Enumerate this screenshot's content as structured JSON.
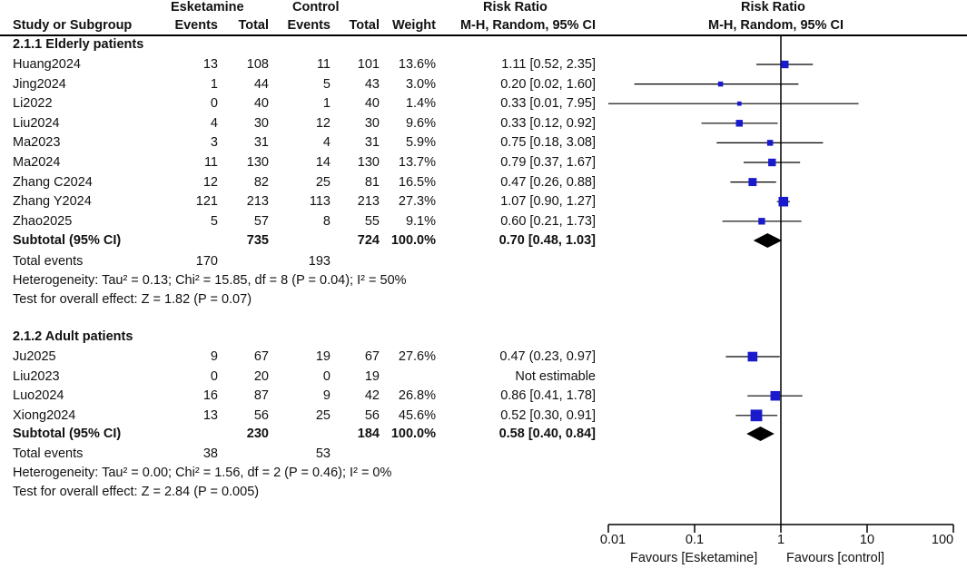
{
  "headers": {
    "group_esk": "Esketamine",
    "group_ctl": "Control",
    "col_study": "Study or Subgroup",
    "col_events": "Events",
    "col_total": "Total",
    "col_weight": "Weight",
    "col_rr_top": "Risk Ratio",
    "col_rr_method": "M-H, Random, 95% CI",
    "plot_title_top": "Risk Ratio",
    "plot_title_method": "M-H, Random, 95% CI"
  },
  "subgroups": [
    {
      "title": "2.1.1 Elderly patients",
      "studies": [
        {
          "study": "Huang2024",
          "e_events": "13",
          "e_total": "108",
          "c_events": "11",
          "c_total": "101",
          "weight": "13.6%",
          "ci_text": "1.11 [0.52, 2.35]"
        },
        {
          "study": "Jing2024",
          "e_events": "1",
          "e_total": "44",
          "c_events": "5",
          "c_total": "43",
          "weight": "3.0%",
          "ci_text": "0.20 [0.02, 1.60]"
        },
        {
          "study": "Li2022",
          "e_events": "0",
          "e_total": "40",
          "c_events": "1",
          "c_total": "40",
          "weight": "1.4%",
          "ci_text": "0.33 [0.01, 7.95]"
        },
        {
          "study": "Liu2024",
          "e_events": "4",
          "e_total": "30",
          "c_events": "12",
          "c_total": "30",
          "weight": "9.6%",
          "ci_text": "0.33 [0.12, 0.92]"
        },
        {
          "study": "Ma2023",
          "e_events": "3",
          "e_total": "31",
          "c_events": "4",
          "c_total": "31",
          "weight": "5.9%",
          "ci_text": "0.75 [0.18, 3.08]"
        },
        {
          "study": "Ma2024",
          "e_events": "11",
          "e_total": "130",
          "c_events": "14",
          "c_total": "130",
          "weight": "13.7%",
          "ci_text": "0.79 [0.37, 1.67]"
        },
        {
          "study": "Zhang C2024",
          "e_events": "12",
          "e_total": "82",
          "c_events": "25",
          "c_total": "81",
          "weight": "16.5%",
          "ci_text": "0.47 [0.26, 0.88]"
        },
        {
          "study": "Zhang Y2024",
          "e_events": "121",
          "e_total": "213",
          "c_events": "113",
          "c_total": "213",
          "weight": "27.3%",
          "ci_text": "1.07 [0.90, 1.27]"
        },
        {
          "study": "Zhao2025",
          "e_events": "5",
          "e_total": "57",
          "c_events": "8",
          "c_total": "55",
          "weight": "9.1%",
          "ci_text": "0.60 [0.21, 1.73]"
        }
      ],
      "subtotal": {
        "label": "Subtotal (95% CI)",
        "e_total": "735",
        "c_total": "724",
        "weight": "100.0%",
        "ci_text": "0.70 [0.48, 1.03]"
      },
      "total_events": {
        "label": "Total events",
        "e": "170",
        "c": "193"
      },
      "heterogeneity": "Heterogeneity: Tau² = 0.13; Chi² = 15.85, df = 8 (P = 0.04); I² = 50%",
      "overall": "Test for overall effect: Z = 1.82 (P = 0.07)"
    },
    {
      "title": "2.1.2 Adult patients",
      "studies": [
        {
          "study": "Ju2025",
          "e_events": "9",
          "e_total": "67",
          "c_events": "19",
          "c_total": "67",
          "weight": "27.6%",
          "ci_text": "0.47 (0.23, 0.97]"
        },
        {
          "study": "Liu2023",
          "e_events": "0",
          "e_total": "20",
          "c_events": "0",
          "c_total": "19",
          "weight": "",
          "ci_text": "Not estimable"
        },
        {
          "study": "Luo2024",
          "e_events": "16",
          "e_total": "87",
          "c_events": "9",
          "c_total": "42",
          "weight": "26.8%",
          "ci_text": "0.86 [0.41, 1.78]"
        },
        {
          "study": "Xiong2024",
          "e_events": "13",
          "e_total": "56",
          "c_events": "25",
          "c_total": "56",
          "weight": "45.6%",
          "ci_text": "0.52 [0.30, 0.91]"
        }
      ],
      "subtotal": {
        "label": "Subtotal (95% CI)",
        "e_total": "230",
        "c_total": "184",
        "weight": "100.0%",
        "ci_text": "0.58 [0.40, 0.84]"
      },
      "total_events": {
        "label": "Total events",
        "e": "38",
        "c": "53"
      },
      "heterogeneity": "Heterogeneity: Tau² = 0.00; Chi² = 1.56, df = 2 (P = 0.46); I² = 0%",
      "overall": "Test for overall effect: Z = 2.84 (P = 0.005)"
    }
  ],
  "axis": {
    "ticks": [
      "0.01",
      "0.1",
      "1",
      "10",
      "100"
    ],
    "favours_left": "Favours [Esketamine]",
    "favours_right": "Favours [control]"
  },
  "chart_data": {
    "type": "forest",
    "x_scale": "log",
    "xlim": [
      0.01,
      100
    ],
    "reference_line": 1,
    "ticks": [
      0.01,
      0.1,
      1,
      10,
      100
    ],
    "studies": [
      {
        "name": "Huang2024",
        "rr": 1.11,
        "lo": 0.52,
        "hi": 2.35,
        "weight": 13.6
      },
      {
        "name": "Jing2024",
        "rr": 0.2,
        "lo": 0.02,
        "hi": 1.6,
        "weight": 3.0
      },
      {
        "name": "Li2022",
        "rr": 0.33,
        "lo": 0.01,
        "hi": 7.95,
        "weight": 1.4
      },
      {
        "name": "Liu2024",
        "rr": 0.33,
        "lo": 0.12,
        "hi": 0.92,
        "weight": 9.6
      },
      {
        "name": "Ma2023",
        "rr": 0.75,
        "lo": 0.18,
        "hi": 3.08,
        "weight": 5.9
      },
      {
        "name": "Ma2024",
        "rr": 0.79,
        "lo": 0.37,
        "hi": 1.67,
        "weight": 13.7
      },
      {
        "name": "Zhang C2024",
        "rr": 0.47,
        "lo": 0.26,
        "hi": 0.88,
        "weight": 16.5
      },
      {
        "name": "Zhang Y2024",
        "rr": 1.07,
        "lo": 0.9,
        "hi": 1.27,
        "weight": 27.3
      },
      {
        "name": "Zhao2025",
        "rr": 0.6,
        "lo": 0.21,
        "hi": 1.73,
        "weight": 9.1
      },
      {
        "name": "Subtotal (95% CI)",
        "rr": 0.7,
        "lo": 0.48,
        "hi": 1.03,
        "diamond": true
      },
      {
        "name": "Ju2025",
        "rr": 0.47,
        "lo": 0.23,
        "hi": 0.97,
        "weight": 27.6
      },
      {
        "name": "Liu2023",
        "rr": null,
        "lo": null,
        "hi": null,
        "weight": null
      },
      {
        "name": "Luo2024",
        "rr": 0.86,
        "lo": 0.41,
        "hi": 1.78,
        "weight": 26.8
      },
      {
        "name": "Xiong2024",
        "rr": 0.52,
        "lo": 0.3,
        "hi": 0.91,
        "weight": 45.6
      },
      {
        "name": "Subtotal (95% CI)",
        "rr": 0.58,
        "lo": 0.4,
        "hi": 0.84,
        "diamond": true
      }
    ],
    "colors": {
      "marker": "#1a1acd",
      "line": "#000000"
    }
  }
}
